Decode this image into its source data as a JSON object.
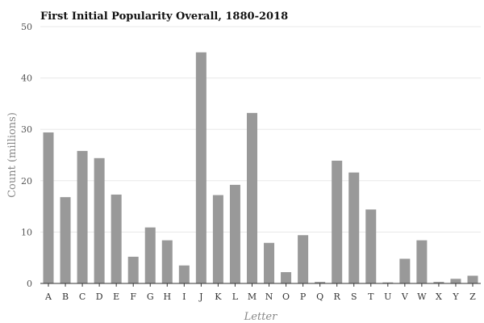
{
  "chart_data": {
    "type": "bar",
    "title": "First Initial Popularity Overall, 1880-2018",
    "xlabel": "Letter",
    "ylabel": "Count (millions)",
    "ylim": [
      0,
      50
    ],
    "yticks": [
      0,
      10,
      20,
      30,
      40,
      50
    ],
    "grid": true,
    "bar_color": "#999999",
    "categories": [
      "A",
      "B",
      "C",
      "D",
      "E",
      "F",
      "G",
      "H",
      "I",
      "J",
      "K",
      "L",
      "M",
      "N",
      "O",
      "P",
      "Q",
      "R",
      "S",
      "T",
      "U",
      "V",
      "W",
      "X",
      "Y",
      "Z"
    ],
    "values": [
      29.4,
      16.8,
      25.8,
      24.4,
      17.3,
      5.2,
      10.9,
      8.4,
      3.5,
      45.0,
      17.2,
      19.2,
      33.2,
      7.9,
      2.2,
      9.4,
      0.3,
      23.9,
      21.6,
      14.4,
      0.2,
      4.8,
      8.4,
      0.3,
      0.9,
      1.5
    ]
  }
}
